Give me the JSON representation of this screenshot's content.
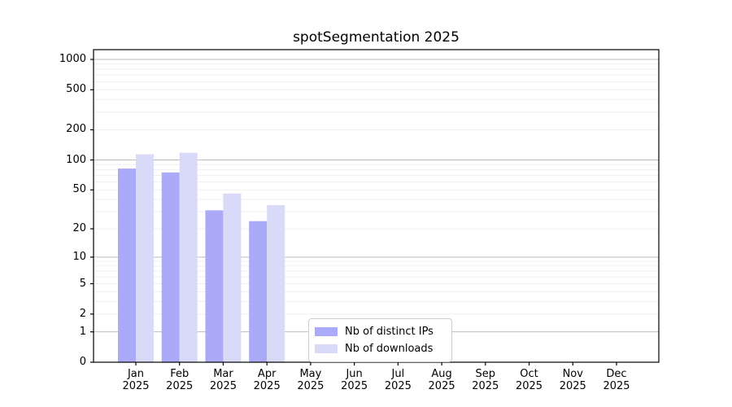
{
  "chart_data": {
    "type": "bar",
    "title": "spotSegmentation 2025",
    "categories": [
      "Jan",
      "Feb",
      "Mar",
      "Apr",
      "May",
      "Jun",
      "Jul",
      "Aug",
      "Sep",
      "Oct",
      "Nov",
      "Dec"
    ],
    "category_year": "2025",
    "series": [
      {
        "name": "Nb of distinct IPs",
        "color": "#aaaaf8",
        "values": [
          82,
          75,
          31,
          24,
          0,
          0,
          0,
          0,
          0,
          0,
          0,
          0
        ]
      },
      {
        "name": "Nb of downloads",
        "color": "#d9d9f8",
        "values": [
          114,
          118,
          46,
          35,
          0,
          0,
          0,
          0,
          0,
          0,
          0,
          0
        ]
      }
    ],
    "y_scale": "log1p",
    "ylim": [
      0,
      1250
    ],
    "y_ticks": [
      0,
      1,
      2,
      5,
      10,
      20,
      50,
      100,
      200,
      500,
      1000
    ],
    "y_major_gridlines": [
      1,
      10,
      100,
      1000
    ],
    "y_minor_gridlines": [
      2,
      3,
      4,
      5,
      6,
      7,
      8,
      9,
      20,
      30,
      40,
      50,
      60,
      70,
      80,
      90,
      200,
      300,
      400,
      500,
      600,
      700,
      800,
      900
    ],
    "grid": true,
    "legend_position": "lower center-left",
    "xlabel": "",
    "ylabel": ""
  },
  "colors": {
    "background": "#ffffff",
    "text": "#000000",
    "axis": "#000000",
    "major_grid": "#bbbbbb",
    "minor_grid": "#efefef",
    "legend_border": "#cccccc"
  }
}
